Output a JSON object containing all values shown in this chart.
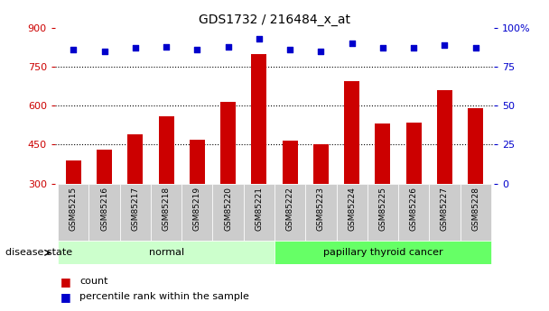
{
  "title": "GDS1732 / 216484_x_at",
  "categories": [
    "GSM85215",
    "GSM85216",
    "GSM85217",
    "GSM85218",
    "GSM85219",
    "GSM85220",
    "GSM85221",
    "GSM85222",
    "GSM85223",
    "GSM85224",
    "GSM85225",
    "GSM85226",
    "GSM85227",
    "GSM85228"
  ],
  "counts": [
    390,
    430,
    490,
    560,
    470,
    615,
    800,
    465,
    450,
    695,
    530,
    535,
    660,
    590
  ],
  "percentiles": [
    86,
    85,
    87,
    88,
    86,
    88,
    93,
    86,
    85,
    90,
    87,
    87,
    89,
    87
  ],
  "bar_color": "#cc0000",
  "dot_color": "#0000cc",
  "bar_bottom": 300,
  "ylim_left": [
    300,
    900
  ],
  "ylim_right": [
    0,
    100
  ],
  "yticks_left": [
    300,
    450,
    600,
    750,
    900
  ],
  "yticks_right": [
    0,
    25,
    50,
    75,
    100
  ],
  "groups": [
    {
      "label": "normal",
      "start": 0,
      "end": 7,
      "color": "#ccffcc"
    },
    {
      "label": "papillary thyroid cancer",
      "start": 7,
      "end": 14,
      "color": "#66ff66"
    }
  ],
  "disease_state_label": "disease state",
  "background_color": "#ffffff",
  "plot_bg_color": "#ffffff",
  "tick_label_bg": "#cccccc",
  "grid_color": "#000000",
  "right_axis_color": "#0000cc",
  "left_axis_color": "#cc0000",
  "gridlines_at": [
    450,
    600,
    750
  ],
  "bar_width": 0.5
}
